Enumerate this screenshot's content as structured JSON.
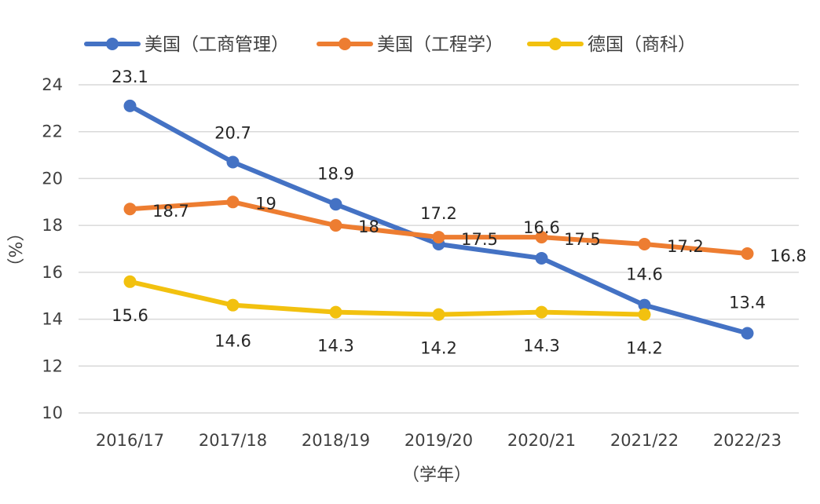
{
  "chart_data": {
    "type": "line",
    "title": "",
    "xlabel": "（学年）",
    "ylabel": "（%）",
    "ylim": [
      10,
      24
    ],
    "y_ticks": [
      10,
      12,
      14,
      16,
      18,
      20,
      22,
      24
    ],
    "grid": "horizontal",
    "legend_position": "top",
    "categories": [
      "2016/17",
      "2017/18",
      "2018/19",
      "2019/20",
      "2020/21",
      "2021/22",
      "2022/23"
    ],
    "series": [
      {
        "name": "美国（工商管理）",
        "color": "#4472C4",
        "values": [
          23.1,
          20.7,
          18.9,
          17.2,
          16.6,
          14.6,
          13.4
        ]
      },
      {
        "name": "美国（工程学）",
        "color": "#ED7D31",
        "values": [
          18.7,
          19,
          18,
          17.5,
          17.5,
          17.2,
          16.8
        ]
      },
      {
        "name": "德国（商科）",
        "color": "#F2C10F",
        "values": [
          15.6,
          14.6,
          14.3,
          14.2,
          14.3,
          14.2,
          null
        ]
      }
    ]
  }
}
